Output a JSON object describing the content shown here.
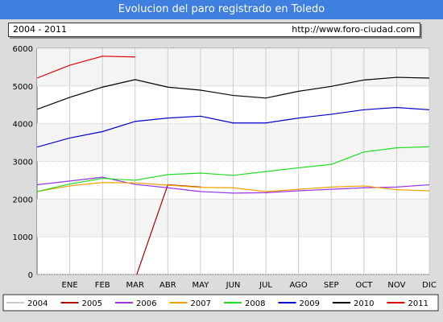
{
  "title": "Evolucion del paro registrado en Toledo",
  "info": {
    "period": "2004 - 2011",
    "source": "http://www.foro-ciudad.com"
  },
  "colors": {
    "title_bg": "#3f7fe0",
    "series": {
      "2004": "#c8c8c8",
      "2005": "#b00000",
      "2006": "#9a33e6",
      "2007": "#f0a000",
      "2008": "#22dd22",
      "2009": "#0000cc",
      "2010": "#000000",
      "2011": "#dd0000"
    }
  },
  "chart_data": {
    "type": "line",
    "title": "Evolucion del paro registrado en Toledo",
    "categories": [
      "ENE",
      "FEB",
      "MAR",
      "ABR",
      "MAY",
      "JUN",
      "JUL",
      "AGO",
      "SEP",
      "OCT",
      "NOV",
      "DIC"
    ],
    "y_ticks": [
      0,
      1000,
      2000,
      3000,
      4000,
      5000,
      6000
    ],
    "ylim": [
      0,
      6000
    ],
    "grid": true,
    "legend_position": "bottom",
    "series": [
      {
        "name": "2004",
        "x": [],
        "values": []
      },
      {
        "name": "2005",
        "x": [
          3.05,
          4,
          5
        ],
        "values": [
          0,
          2380,
          2320
        ]
      },
      {
        "name": "2006",
        "x": [
          0,
          1,
          2,
          3,
          4,
          5,
          6,
          7,
          8,
          9,
          10,
          11,
          12
        ],
        "values": [
          2380,
          2480,
          2580,
          2390,
          2300,
          2200,
          2160,
          2170,
          2220,
          2260,
          2300,
          2320,
          2380
        ]
      },
      {
        "name": "2007",
        "x": [
          0,
          1,
          2,
          3,
          4,
          5,
          6,
          7,
          8,
          9,
          10,
          11,
          12
        ],
        "values": [
          2200,
          2350,
          2440,
          2430,
          2370,
          2310,
          2300,
          2200,
          2260,
          2320,
          2350,
          2250,
          2220
        ]
      },
      {
        "name": "2008",
        "x": [
          0,
          1,
          2,
          3,
          4,
          5,
          6,
          7,
          8,
          9,
          10,
          11,
          12
        ],
        "values": [
          2200,
          2400,
          2550,
          2500,
          2650,
          2690,
          2630,
          2730,
          2830,
          2920,
          3250,
          3360,
          3390
        ]
      },
      {
        "name": "2009",
        "x": [
          0,
          1,
          2,
          3,
          4,
          5,
          6,
          7,
          8,
          9,
          10,
          11,
          12
        ],
        "values": [
          3380,
          3620,
          3790,
          4060,
          4150,
          4200,
          4020,
          4020,
          4150,
          4250,
          4370,
          4430,
          4370
        ]
      },
      {
        "name": "2010",
        "x": [
          0,
          1,
          2,
          3,
          4,
          5,
          6,
          7,
          8,
          9,
          10,
          11,
          12
        ],
        "values": [
          4380,
          4700,
          4970,
          5170,
          4970,
          4890,
          4750,
          4680,
          4860,
          4990,
          5160,
          5230,
          5210
        ]
      },
      {
        "name": "2011",
        "x": [
          0,
          1,
          2,
          3
        ],
        "values": [
          5210,
          5550,
          5790,
          5770
        ]
      }
    ]
  }
}
